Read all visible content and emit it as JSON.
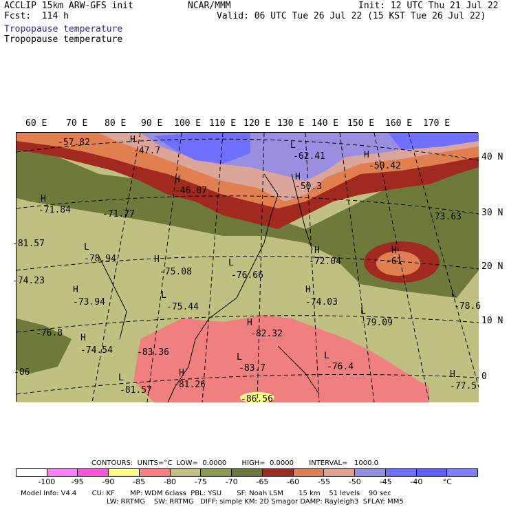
{
  "header": {
    "left_line1": "ACCLIP 15km ARW-GFS init",
    "left_line2": "Fcst:  114 h",
    "center": "NCAR/MMM",
    "init": "Init: 12 UTC Thu 21 Jul 22",
    "valid": "Valid: 06 UTC Tue 26 Jul 22 (15 KST Tue 26 Jul 22)",
    "field_title_1": "Tropopause temperature",
    "field_title_2": "Tropopause temperature"
  },
  "longitude_labels": [
    "60 E",
    "70 E",
    "80 E",
    "90 E",
    "100 E",
    "110 E",
    "120 E",
    "130 E",
    "140 E",
    "150 E",
    "160 E",
    "170 E"
  ],
  "latitude_labels": [
    "40 N",
    "30 N",
    "20 N",
    "10 N",
    "0"
  ],
  "extrema": [
    {
      "type": "H",
      "value": "-57.82"
    },
    {
      "type": "H",
      "value": "-47.7"
    },
    {
      "type": "L",
      "value": "-62.41"
    },
    {
      "type": "H",
      "value": "-50.42"
    },
    {
      "type": "H",
      "value": "-46.07"
    },
    {
      "type": "H",
      "value": "-50.3"
    },
    {
      "type": "H",
      "value": "-71.84"
    },
    {
      "type": "L",
      "value": "-71.77"
    },
    {
      "type": "L",
      "value": "-73.63"
    },
    {
      "type": "L",
      "value": "-81.57"
    },
    {
      "type": "L",
      "value": "-78.94"
    },
    {
      "type": "H",
      "value": "-75.08"
    },
    {
      "type": "L",
      "value": "-76.66"
    },
    {
      "type": "H",
      "value": "-72.04"
    },
    {
      "type": "H",
      "value": "-61"
    },
    {
      "type": "L",
      "value": "-74.23"
    },
    {
      "type": "H",
      "value": "-73.94"
    },
    {
      "type": "L",
      "value": "-75.44"
    },
    {
      "type": "H",
      "value": "-74.03"
    },
    {
      "type": "L",
      "value": "-78.6"
    },
    {
      "type": "L",
      "value": "-79.09"
    },
    {
      "type": "L",
      "value": "-76.8"
    },
    {
      "type": "H",
      "value": "-74.54"
    },
    {
      "type": "L",
      "value": "-83.36"
    },
    {
      "type": "H",
      "value": "-82.32"
    },
    {
      "type": "L",
      "value": "-83.7"
    },
    {
      "type": "L",
      "value": "-76.4"
    },
    {
      "type": "L",
      "value": "-06"
    },
    {
      "type": "L",
      "value": "-81.57"
    },
    {
      "type": "H",
      "value": "-81.26"
    },
    {
      "type": "L",
      "value": "-86.56"
    },
    {
      "type": "H",
      "value": "-77.5"
    }
  ],
  "footer": {
    "contours_line": "CONTOURS:  UNITS=°C  LOW=  0.0000       HIGH=  0.0000       INTERVAL=   1000.0",
    "model_line1": "Model Info: V4.4       CU: KF       MP: WDM 6class  PBL: YSU       SF: Noah LSM       15 km    51 levels    90 sec",
    "model_line2": "LW: RRTMG    SW: RRTMG   DIFF: simple KM: 2D Smagor DAMP: Rayleigh3  SFLAY: MM5"
  },
  "colorbar": {
    "colors": [
      "#ffffff",
      "#ff80ff",
      "#ff55dd",
      "#ffff80",
      "#ff8080",
      "#c0c080",
      "#8a9a50",
      "#6b7a3a",
      "#9e2a20",
      "#e08050",
      "#e0a090",
      "#9090e0",
      "#7070ff",
      "#6060ff",
      "#8080ff"
    ],
    "ticks": [
      "-100",
      "-95",
      "-90",
      "-85",
      "-80",
      "-75",
      "-70",
      "-65",
      "-60",
      "-55",
      "-50",
      "-45",
      "-40",
      "°C"
    ]
  },
  "colors": {
    "cold_pink": "#f08080",
    "olive_light": "#c0c080",
    "olive_dark": "#6e7a3a",
    "brown_red": "#a02a20",
    "orange": "#e08050",
    "rose": "#dba59a",
    "lavender": "#9a8ee0",
    "blue": "#7070ff"
  }
}
